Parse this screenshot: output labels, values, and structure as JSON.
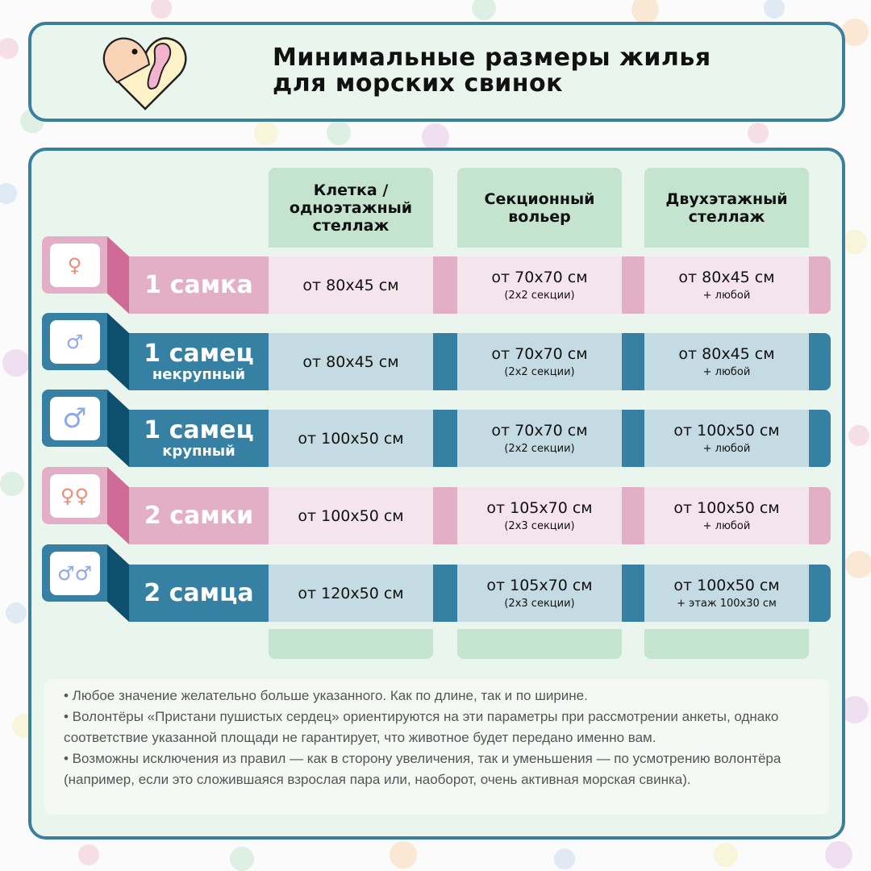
{
  "title": [
    "Минимальные размеры жилья",
    "для морских свинок"
  ],
  "colors": {
    "pink": "#e3afc6",
    "pink_dark": "#cf6b96",
    "pink_cell": "#f4e4eb",
    "blue": "#3580a3",
    "blue_dark": "#0e4f6e",
    "blue_cell": "#c4dbe3",
    "green": "#c4e4d0",
    "border": "#3a7f9c"
  },
  "columns": [
    "Клетка / одноэтажный стеллаж",
    "Секционный вольер",
    "Двухэтажный стеллаж"
  ],
  "rows": [
    {
      "label": "1 самка",
      "sub": "",
      "kind": "pink",
      "icon": "female-icon",
      "cells": [
        {
          "v": "от 80х45 см",
          "n": ""
        },
        {
          "v": "от 70х70 см",
          "n": "(2х2 секции)"
        },
        {
          "v": "от 80х45 см",
          "n": "+ любой"
        }
      ]
    },
    {
      "label": "1 самец",
      "sub": "некрупный",
      "kind": "blue",
      "icon": "male-icon",
      "cells": [
        {
          "v": "от 80х45 см",
          "n": ""
        },
        {
          "v": "от 70х70 см",
          "n": "(2х2 секции)"
        },
        {
          "v": "от 80х45 см",
          "n": "+ любой"
        }
      ]
    },
    {
      "label": "1 самец",
      "sub": "крупный",
      "kind": "blue",
      "icon": "large-male-icon",
      "cells": [
        {
          "v": "от 100х50 см",
          "n": ""
        },
        {
          "v": "от 70х70 см",
          "n": "(2х2 секции)"
        },
        {
          "v": "от 100х50 см",
          "n": "+ любой"
        }
      ]
    },
    {
      "label": "2 самки",
      "sub": "",
      "kind": "pink",
      "icon": "two-females-icon",
      "cells": [
        {
          "v": "от 100х50 см",
          "n": ""
        },
        {
          "v": "от 105х70 см",
          "n": "(2х3 секции)"
        },
        {
          "v": "от 100х50 см",
          "n": "+ любой"
        }
      ]
    },
    {
      "label": "2 самца",
      "sub": "",
      "kind": "blue",
      "icon": "two-males-icon",
      "cells": [
        {
          "v": "от 120х50 см",
          "n": ""
        },
        {
          "v": "от 105х70 см",
          "n": "(2х3 секции)"
        },
        {
          "v": "от 100х50 см",
          "n": "+ этаж 100х30 см"
        }
      ]
    }
  ],
  "notes": [
    "• Любое значение желательно больше указанного. Как по длине, так и по ширине.",
    "• Волонтёры «Пристани пушистых сердец» ориентируются на эти параметры при рассмотрении анкеты, однако соответствие указанной площади не гарантирует, что животное будет передано именно вам.",
    "• Возможны исключения из правил — как в сторону увеличения, так и уменьшения — по усмотрению волонтёра (например, если это сложившаяся взрослая пара или, наоборот, очень активная морская свинка)."
  ]
}
